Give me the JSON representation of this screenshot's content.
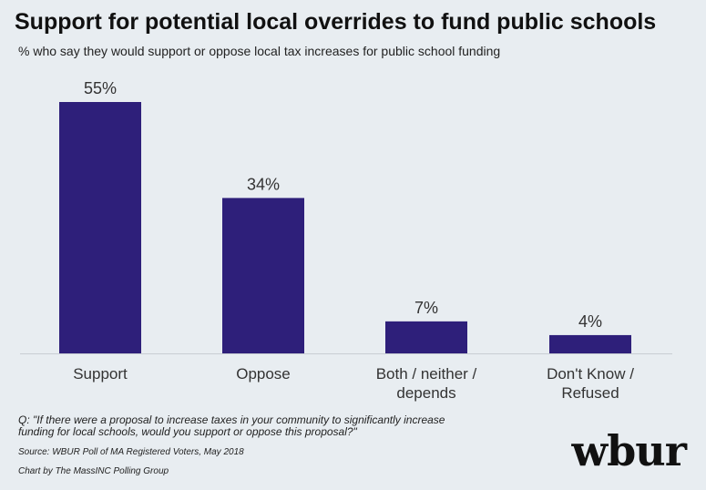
{
  "title": "Support for potential local overrides to fund public schools",
  "subtitle": "% who say they would support or oppose local tax increases for public school funding",
  "question": "Q: \"If there were a proposal to increase taxes in your community to significantly increase funding for local schools, would you support or oppose this proposal?\"",
  "source": "Source: WBUR Poll of MA Registered Voters, May 2018",
  "credit": "Chart by The MassINC Polling Group",
  "logo": "wbur",
  "colors": {
    "bar": "#2e1f7a",
    "background": "#e8edf1",
    "axis": "#c9ced3"
  },
  "chart_data": {
    "type": "bar",
    "categories": [
      [
        "Support"
      ],
      [
        "Oppose"
      ],
      [
        "Both / neither /",
        "depends"
      ],
      [
        "Don't Know /",
        "Refused"
      ]
    ],
    "values": [
      55,
      34,
      7,
      4
    ],
    "value_labels": [
      "55%",
      "34%",
      "7%",
      "4%"
    ],
    "title": "Support for potential local overrides to fund public schools",
    "ylim": [
      0,
      55
    ],
    "grid": false,
    "legend": "none"
  }
}
